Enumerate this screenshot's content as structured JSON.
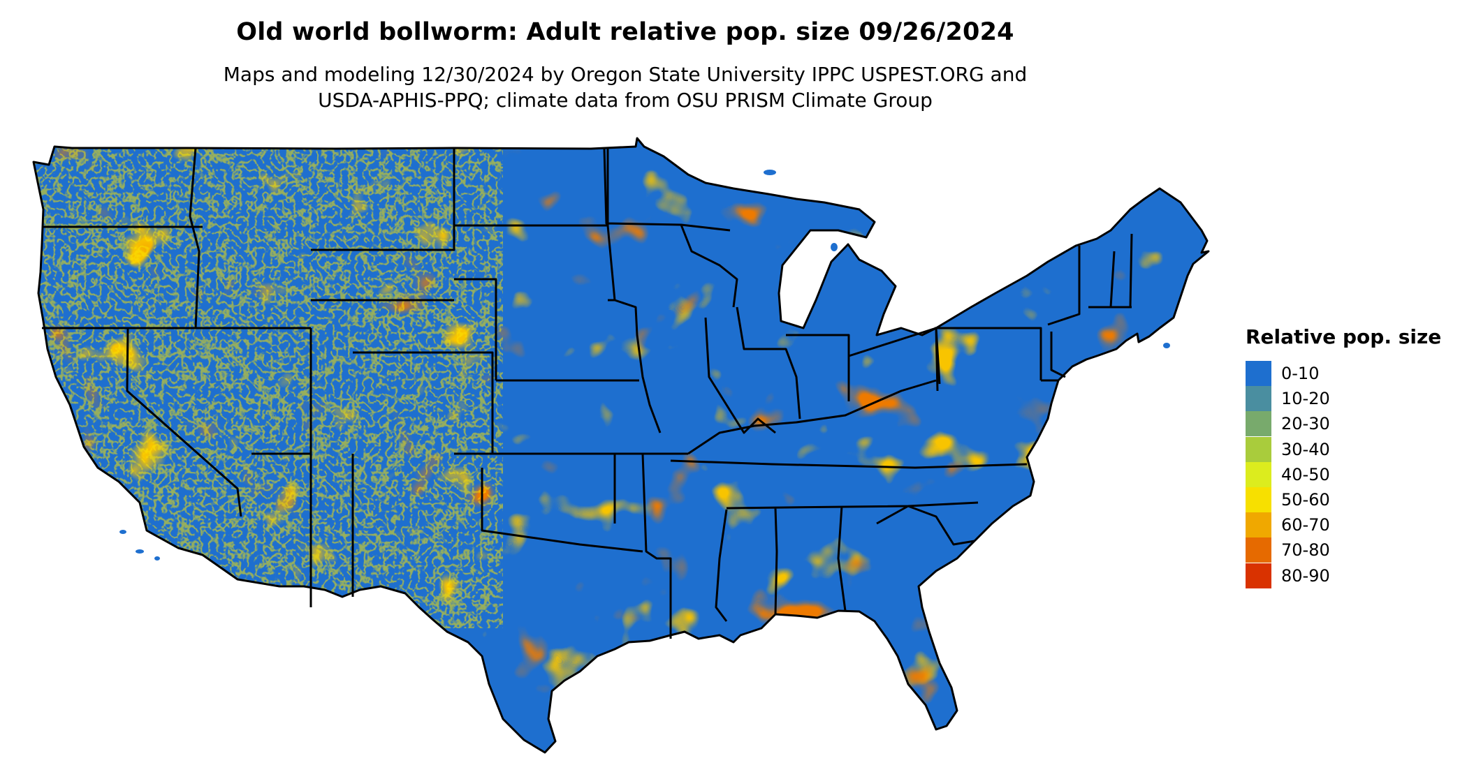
{
  "title": "Old world bollworm: Adult relative pop. size 09/26/2024",
  "subtitle_line1": "Maps and modeling 12/30/2024 by Oregon State University IPPC USPEST.ORG and",
  "subtitle_line2": "USDA-APHIS-PPQ; climate data from OSU PRISM Climate Group",
  "legend": {
    "title": "Relative pop. size",
    "items": [
      {
        "label": "0-10",
        "color": "#1e6fcf"
      },
      {
        "label": "10-20",
        "color": "#4a8ea0"
      },
      {
        "label": "20-30",
        "color": "#78aa6c"
      },
      {
        "label": "30-40",
        "color": "#a9cc3c"
      },
      {
        "label": "40-50",
        "color": "#dcec1e"
      },
      {
        "label": "50-60",
        "color": "#f7e000"
      },
      {
        "label": "60-70",
        "color": "#f0a800"
      },
      {
        "label": "70-80",
        "color": "#e66a00"
      },
      {
        "label": "80-90",
        "color": "#d93200"
      }
    ]
  }
}
